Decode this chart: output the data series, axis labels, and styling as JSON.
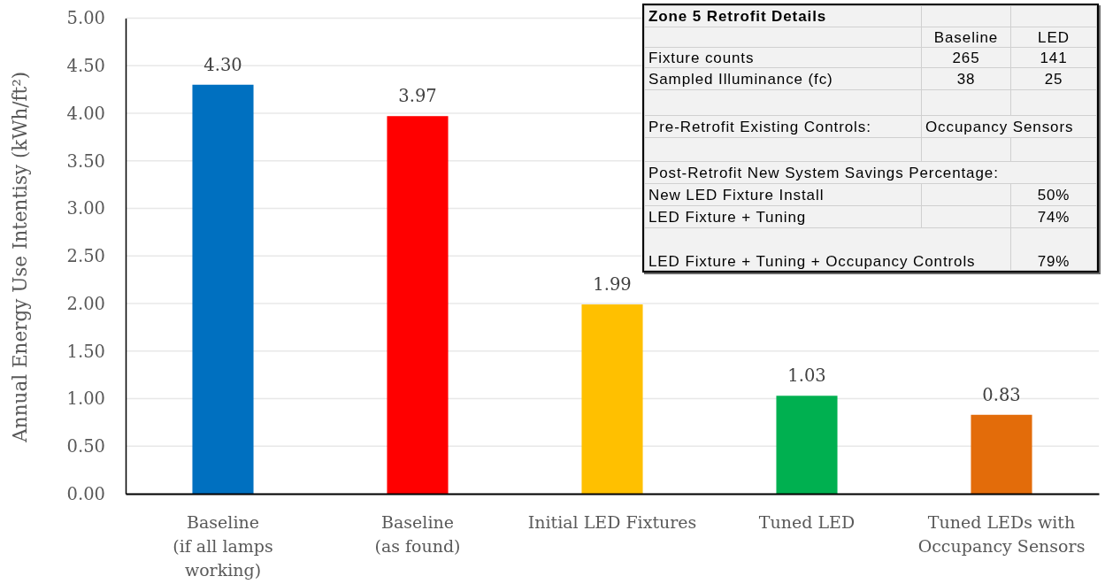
{
  "chart_data": [
    {
      "type": "bar",
      "categories": [
        "Baseline\n(if all lamps\nworking)",
        "Baseline\n(as found)",
        "Initial LED Fixtures",
        "Tuned LED",
        "Tuned LEDs with\nOccupancy Sensors"
      ],
      "values": [
        4.3,
        3.97,
        1.99,
        1.03,
        0.83
      ],
      "colors": [
        "#0070c0",
        "#ff0000",
        "#ffc000",
        "#00b050",
        "#e36c0a"
      ],
      "value_labels": [
        "4.30",
        "3.97",
        "1.99",
        "1.03",
        "0.83"
      ],
      "ylabel": "Annual Energy Use Intentisy (kWh/ft²)",
      "ylim": [
        0,
        5
      ],
      "yticks": [
        {
          "value": 0,
          "label": "0.00"
        },
        {
          "value": 0.5,
          "label": "0.50"
        },
        {
          "value": 1,
          "label": "1.00"
        },
        {
          "value": 1.5,
          "label": "1.50"
        },
        {
          "value": 2,
          "label": "2.00"
        },
        {
          "value": 2.5,
          "label": "2.50"
        },
        {
          "value": 3,
          "label": "3.00"
        },
        {
          "value": 3.5,
          "label": "3.50"
        },
        {
          "value": 4,
          "label": "4.00"
        },
        {
          "value": 4.5,
          "label": "4.50"
        },
        {
          "value": 5,
          "label": "5.00"
        }
      ],
      "grid": "y"
    },
    {
      "type": "other",
      "title": "Zone 5 Retrofit Details",
      "annotations": [
        "Baseline",
        "LED",
        "Fixture counts",
        "265",
        "141",
        "Sampled Illuminance (fc)",
        "38",
        "25",
        "Pre-Retrofit Existing Controls:",
        "Occupancy Sensors",
        "Post-Retrofit New System Savings Percentage:",
        "New LED Fixture Install",
        "50%",
        "LED Fixture + Tuning",
        "74%",
        "LED Fixture + Tuning + Occupancy Controls",
        "79%"
      ]
    }
  ]
}
